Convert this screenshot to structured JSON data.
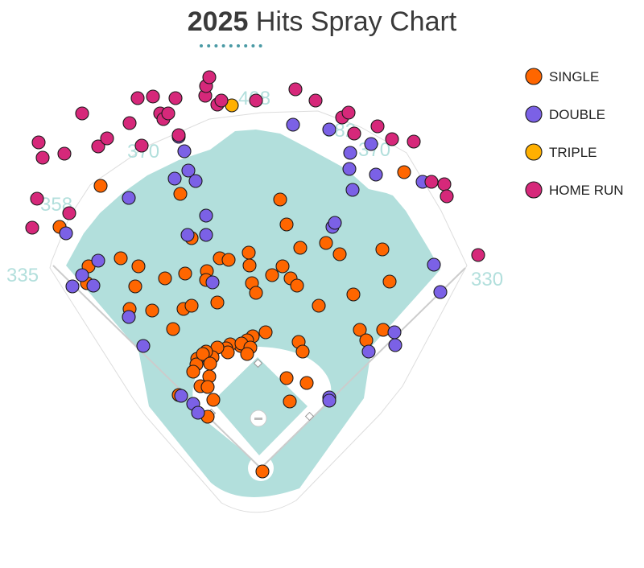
{
  "title": {
    "year": "2025",
    "text": "Hits Spray Chart"
  },
  "colors": {
    "turf": "#b2dfdc",
    "infield_dirt": "#ffffff",
    "wall_line": "#dddddd",
    "foul_line": "#cccccc",
    "dots": "#4a9aa5",
    "single": "#ff6600",
    "double": "#7b61e6",
    "triple": "#ffb000",
    "home_run": "#d6287a"
  },
  "chart_data": {
    "type": "scatter",
    "title": "2025 Hits Spray Chart",
    "distance_labels": [
      "335",
      "358",
      "370",
      "408",
      "382",
      "370",
      "330"
    ],
    "legend_placement": "top-right",
    "series": [
      {
        "name": "SINGLE",
        "color": "#ff6600",
        "points": [
          [
            125,
            231
          ],
          [
            74,
            282
          ],
          [
            110,
            331
          ],
          [
            108,
            352
          ],
          [
            150,
            321
          ],
          [
            172,
            331
          ],
          [
            168,
            356
          ],
          [
            161,
            384
          ],
          [
            189,
            386
          ],
          [
            205,
            346
          ],
          [
            215,
            409
          ],
          [
            228,
            384
          ],
          [
            238,
            380
          ],
          [
            230,
            340
          ],
          [
            257,
            337
          ],
          [
            256,
            348
          ],
          [
            270,
            376
          ],
          [
            273,
            321
          ],
          [
            284,
            323
          ],
          [
            309,
            314
          ],
          [
            310,
            330
          ],
          [
            313,
            352
          ],
          [
            318,
            364
          ],
          [
            338,
            342
          ],
          [
            351,
            331
          ],
          [
            361,
            346
          ],
          [
            369,
            355
          ],
          [
            224,
            241
          ],
          [
            238,
            296
          ],
          [
            348,
            248
          ],
          [
            356,
            279
          ],
          [
            373,
            308
          ],
          [
            405,
            302
          ],
          [
            422,
            316
          ],
          [
            396,
            380
          ],
          [
            439,
            366
          ],
          [
            475,
            310
          ],
          [
            484,
            350
          ],
          [
            502,
            214
          ],
          [
            447,
            410
          ],
          [
            455,
            423
          ],
          [
            476,
            410
          ],
          [
            371,
            425
          ],
          [
            376,
            437
          ],
          [
            381,
            476
          ],
          [
            356,
            470
          ],
          [
            360,
            499
          ],
          [
            330,
            413
          ],
          [
            314,
            418
          ],
          [
            307,
            423
          ],
          [
            299,
            430
          ],
          [
            286,
            428
          ],
          [
            281,
            433
          ],
          [
            283,
            438
          ],
          [
            270,
            432
          ],
          [
            264,
            444
          ],
          [
            256,
            437
          ],
          [
            245,
            446
          ],
          [
            244,
            453
          ],
          [
            252,
            440
          ],
          [
            261,
            452
          ],
          [
            240,
            462
          ],
          [
            260,
            468
          ],
          [
            249,
            480
          ],
          [
            258,
            481
          ],
          [
            222,
            491
          ],
          [
            265,
            497
          ],
          [
            258,
            518
          ],
          [
            300,
            427
          ],
          [
            311,
            432
          ],
          [
            307,
            440
          ],
          [
            326,
            586
          ]
        ]
      },
      {
        "name": "DOUBLE",
        "color": "#7b61e6",
        "points": [
          [
            82,
            290
          ],
          [
            90,
            356
          ],
          [
            102,
            342
          ],
          [
            116,
            355
          ],
          [
            122,
            324
          ],
          [
            160,
            394
          ],
          [
            178,
            430
          ],
          [
            160,
            246
          ],
          [
            217,
            222
          ],
          [
            234,
            212
          ],
          [
            243,
            225
          ],
          [
            222,
            170
          ],
          [
            229,
            188
          ],
          [
            256,
            268
          ],
          [
            233,
            292
          ],
          [
            256,
            292
          ],
          [
            264,
            351
          ],
          [
            364,
            155
          ],
          [
            409,
            161
          ],
          [
            435,
            190
          ],
          [
            434,
            210
          ],
          [
            438,
            236
          ],
          [
            461,
            179
          ],
          [
            467,
            217
          ],
          [
            525,
            226
          ],
          [
            413,
            282
          ],
          [
            416,
            277
          ],
          [
            539,
            329
          ],
          [
            547,
            363
          ],
          [
            490,
            413
          ],
          [
            491,
            429
          ],
          [
            458,
            437
          ],
          [
            225,
            492
          ],
          [
            240,
            502
          ],
          [
            246,
            513
          ],
          [
            409,
            494
          ],
          [
            409,
            498
          ]
        ]
      },
      {
        "name": "TRIPLE",
        "color": "#ffb000",
        "points": [
          [
            288,
            131
          ]
        ]
      },
      {
        "name": "HOME RUN",
        "color": "#d6287a",
        "points": [
          [
            102,
            141
          ],
          [
            48,
            177
          ],
          [
            53,
            196
          ],
          [
            80,
            191
          ],
          [
            122,
            182
          ],
          [
            133,
            172
          ],
          [
            161,
            153
          ],
          [
            176,
            181
          ],
          [
            171,
            122
          ],
          [
            190,
            120
          ],
          [
            199,
            141
          ],
          [
            203,
            148
          ],
          [
            209,
            141
          ],
          [
            218,
            122
          ],
          [
            222,
            168
          ],
          [
            255,
            119
          ],
          [
            256,
            107
          ],
          [
            260,
            96
          ],
          [
            270,
            130
          ],
          [
            275,
            125
          ],
          [
            318,
            125
          ],
          [
            367,
            111
          ],
          [
            392,
            125
          ],
          [
            425,
            146
          ],
          [
            433,
            140
          ],
          [
            440,
            166
          ],
          [
            469,
            157
          ],
          [
            487,
            173
          ],
          [
            514,
            176
          ],
          [
            536,
            226
          ],
          [
            552,
            229
          ],
          [
            555,
            244
          ],
          [
            46,
            247
          ],
          [
            86,
            265
          ],
          [
            40,
            283
          ],
          [
            594,
            317
          ]
        ]
      }
    ]
  }
}
